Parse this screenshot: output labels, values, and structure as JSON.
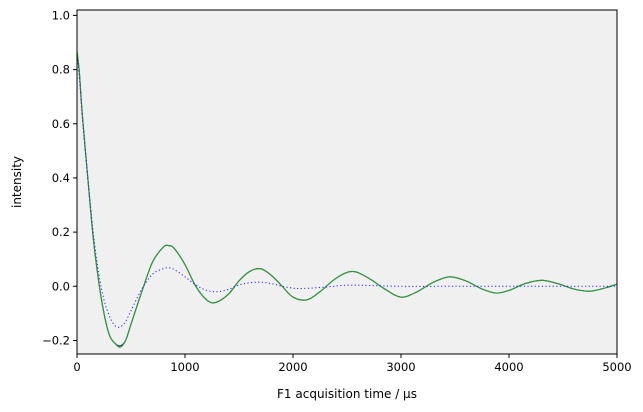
{
  "chart_data": {
    "type": "line",
    "title": "",
    "xlabel": "F1 acquisition time / µs",
    "ylabel": "intensity",
    "xlim": [
      0,
      5000
    ],
    "ylim": [
      -0.25,
      1.02
    ],
    "x_ticks": [
      0,
      1000,
      2000,
      3000,
      4000,
      5000
    ],
    "y_ticks": [
      -0.2,
      0.0,
      0.2,
      0.4,
      0.6,
      0.8,
      1.0
    ],
    "x_tick_labels": [
      "0",
      "1000",
      "2000",
      "3000",
      "4000",
      "5000"
    ],
    "y_tick_labels": [
      "−0.2",
      "0.0",
      "0.2",
      "0.4",
      "0.6",
      "0.8",
      "1.0"
    ],
    "grid": false,
    "legend": "none",
    "plot_background": "#f0f0f0",
    "series": [
      {
        "style": "solid",
        "color": "#1a1a8c",
        "x": [
          0,
          20,
          50,
          100,
          150,
          200,
          250,
          300,
          350,
          400,
          450,
          500,
          600,
          700,
          800,
          850,
          900,
          1000,
          1100,
          1200,
          1280,
          1400,
          1500,
          1600,
          1700,
          1800,
          1900,
          2000,
          2130,
          2250,
          2400,
          2550,
          2700,
          2850,
          3000,
          3150,
          3300,
          3450,
          3600,
          3750,
          3880,
          4000,
          4150,
          4300,
          4450,
          4600,
          4750,
          4900,
          5000
        ],
        "y": [
          0.86,
          0.8,
          0.63,
          0.4,
          0.18,
          0.02,
          -0.1,
          -0.18,
          -0.21,
          -0.22,
          -0.2,
          -0.14,
          -0.02,
          0.09,
          0.145,
          0.15,
          0.14,
          0.08,
          0.0,
          -0.05,
          -0.06,
          -0.03,
          0.02,
          0.055,
          0.065,
          0.04,
          0.0,
          -0.04,
          -0.05,
          -0.02,
          0.03,
          0.055,
          0.03,
          -0.01,
          -0.04,
          -0.02,
          0.015,
          0.035,
          0.02,
          -0.01,
          -0.025,
          -0.015,
          0.01,
          0.022,
          0.01,
          -0.01,
          -0.018,
          -0.005,
          0.008
        ]
      },
      {
        "style": "solid",
        "color": "#2aa02a",
        "x": [
          0,
          20,
          50,
          100,
          150,
          200,
          250,
          300,
          350,
          400,
          450,
          500,
          600,
          700,
          800,
          850,
          900,
          1000,
          1100,
          1200,
          1280,
          1400,
          1500,
          1600,
          1700,
          1800,
          1900,
          2000,
          2130,
          2250,
          2400,
          2550,
          2700,
          2850,
          3000,
          3150,
          3300,
          3450,
          3600,
          3750,
          3880,
          4000,
          4150,
          4300,
          4450,
          4600,
          4750,
          4900,
          5000
        ],
        "y": [
          0.87,
          0.8,
          0.63,
          0.4,
          0.18,
          0.02,
          -0.1,
          -0.18,
          -0.21,
          -0.225,
          -0.2,
          -0.14,
          -0.02,
          0.09,
          0.145,
          0.15,
          0.14,
          0.08,
          0.0,
          -0.05,
          -0.06,
          -0.03,
          0.02,
          0.055,
          0.065,
          0.04,
          0.0,
          -0.04,
          -0.05,
          -0.02,
          0.03,
          0.055,
          0.03,
          -0.01,
          -0.04,
          -0.02,
          0.015,
          0.035,
          0.02,
          -0.01,
          -0.025,
          -0.015,
          0.01,
          0.022,
          0.01,
          -0.01,
          -0.018,
          -0.005,
          0.008
        ]
      },
      {
        "style": "dotted",
        "color": "#2222ee",
        "x": [
          0,
          20,
          50,
          100,
          150,
          200,
          250,
          300,
          350,
          400,
          450,
          500,
          600,
          700,
          800,
          850,
          900,
          1000,
          1100,
          1200,
          1300,
          1400,
          1500,
          1600,
          1700,
          1800,
          1900,
          2000,
          2100,
          2300,
          2500,
          2700,
          3000,
          3500,
          4000,
          4500,
          5000
        ],
        "y": [
          0.85,
          0.78,
          0.62,
          0.4,
          0.2,
          0.05,
          -0.05,
          -0.11,
          -0.145,
          -0.15,
          -0.13,
          -0.09,
          -0.01,
          0.045,
          0.065,
          0.068,
          0.062,
          0.035,
          0.005,
          -0.015,
          -0.02,
          -0.012,
          0.005,
          0.013,
          0.015,
          0.01,
          0.0,
          -0.007,
          -0.008,
          -0.003,
          0.004,
          0.003,
          0.0,
          0.0,
          0.0,
          0.0,
          0.0
        ]
      }
    ]
  }
}
